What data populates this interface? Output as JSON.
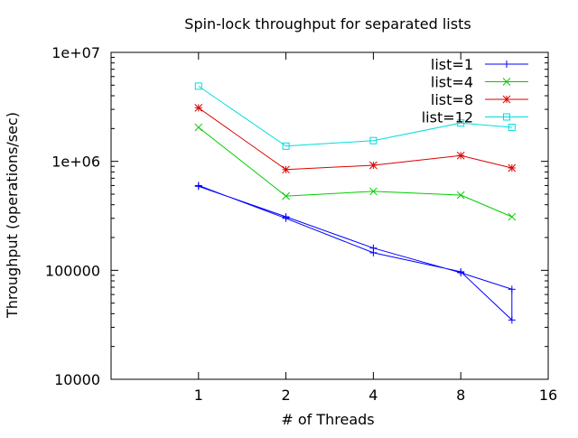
{
  "chart_data": {
    "type": "line",
    "title": "Spin-lock throughput for separated lists",
    "xlabel": "# of Threads",
    "ylabel": "Throughput (operations/sec)",
    "xscale": "log2",
    "yscale": "log10",
    "xlim": [
      0.5,
      16
    ],
    "ylim": [
      10000,
      10000000
    ],
    "xticks": [
      1,
      2,
      4,
      8,
      16
    ],
    "xtick_labels": [
      "1",
      "2",
      "4",
      "8",
      "16"
    ],
    "yticks": [
      10000,
      100000,
      1000000,
      10000000
    ],
    "ytick_labels": [
      "10000",
      "100000",
      "1e+06",
      "1e+07"
    ],
    "grid": false,
    "legend_position": "top-right",
    "series": [
      {
        "name": "list=1",
        "color": "#0000ff",
        "marker": "plus",
        "x": [
          1,
          2,
          4,
          8,
          12,
          12,
          8,
          4,
          2,
          1
        ],
        "y": [
          600000,
          300000,
          145000,
          97000,
          35000,
          67000,
          95000,
          160000,
          310000,
          590000
        ]
      },
      {
        "name": "list=4",
        "color": "#00cc00",
        "marker": "cross",
        "x": [
          1,
          2,
          4,
          8,
          12
        ],
        "y": [
          2050000,
          480000,
          530000,
          490000,
          310000
        ]
      },
      {
        "name": "list=8",
        "color": "#dd0000",
        "marker": "asterisk",
        "x": [
          1,
          2,
          4,
          8,
          12
        ],
        "y": [
          3100000,
          840000,
          920000,
          1130000,
          870000
        ]
      },
      {
        "name": "list=12",
        "color": "#00dddd",
        "marker": "square",
        "x": [
          1,
          2,
          4,
          8,
          12
        ],
        "y": [
          4900000,
          1380000,
          1550000,
          2250000,
          2050000
        ]
      }
    ]
  }
}
